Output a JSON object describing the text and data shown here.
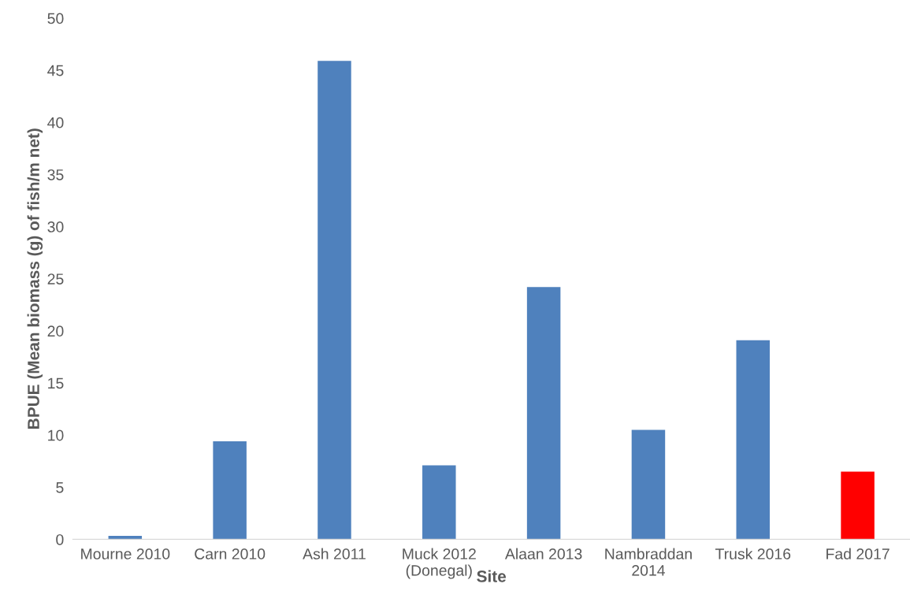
{
  "chart_data": {
    "type": "bar",
    "xlabel": "Site",
    "ylabel": "BPUE (Mean biomass (g) of fish/m net)",
    "categories": [
      "Mourne 2010",
      "Carn 2010",
      "Ash 2011",
      "Muck 2012\n(Donegal)",
      "Alaan 2013",
      "Nambraddan\n2014",
      "Trusk 2016",
      "Fad 2017"
    ],
    "values": [
      0.33,
      9.4,
      45.9,
      7.1,
      24.2,
      10.5,
      19.1,
      6.5
    ],
    "colors": [
      "#4f81bd",
      "#4f81bd",
      "#4f81bd",
      "#4f81bd",
      "#4f81bd",
      "#4f81bd",
      "#4f81bd",
      "#ff0000"
    ],
    "ylim": [
      0,
      50
    ],
    "yticks": [
      0,
      5,
      10,
      15,
      20,
      25,
      30,
      35,
      40,
      45,
      50
    ],
    "grid": false,
    "legend": false
  }
}
